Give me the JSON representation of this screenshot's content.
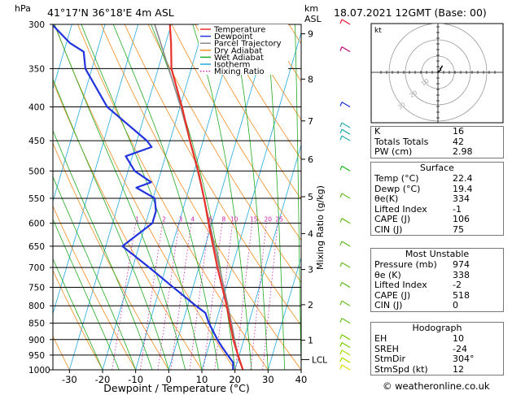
{
  "header": {
    "hpa_label": "hPa",
    "location": "41°17'N  36°18'E  4m  ASL",
    "km_label": "km",
    "asl_label": "ASL",
    "datetime": "18.07.2021  12GMT  (Base: 00)"
  },
  "chart_data": {
    "type": "line",
    "title": "",
    "xlabel": "Dewpoint / Temperature (°C)",
    "ylabel": "hPa",
    "secondary_ylabel": "Mixing Ratio (g/kg)",
    "xlim": [
      -35,
      40
    ],
    "ylim": [
      1000,
      300
    ],
    "y_scale": "log",
    "x_ticks": [
      -30,
      -20,
      -10,
      0,
      10,
      20,
      30,
      40
    ],
    "pressure_ticks": [
      300,
      350,
      400,
      450,
      500,
      550,
      600,
      650,
      700,
      750,
      800,
      850,
      900,
      950,
      1000
    ],
    "km_ticks": [
      {
        "km": "1",
        "p": 902
      },
      {
        "km": "2",
        "p": 797
      },
      {
        "km": "3",
        "p": 705
      },
      {
        "km": "4",
        "p": 622
      },
      {
        "km": "5",
        "p": 547
      },
      {
        "km": "6",
        "p": 480
      },
      {
        "km": "7",
        "p": 420
      },
      {
        "km": "8",
        "p": 363
      },
      {
        "km": "9",
        "p": 310
      }
    ],
    "lcl": {
      "label": "LCL",
      "p": 965
    },
    "mixing_ratio_labels": [
      "1",
      "2",
      "3",
      "4",
      "6",
      "8",
      "10",
      "15",
      "20",
      "25"
    ],
    "mixing_ratio_values": [
      1,
      2,
      3,
      4,
      6,
      8,
      10,
      15,
      20,
      25
    ],
    "legend": {
      "placement": "top-center",
      "entries": [
        {
          "name": "Temperature",
          "color": "#e8312a",
          "dash": "solid"
        },
        {
          "name": "Dewpoint",
          "color": "#2233dd",
          "dash": "solid"
        },
        {
          "name": "Parcel Trajectory",
          "color": "#888888",
          "dash": "solid"
        },
        {
          "name": "Dry Adiabat",
          "color": "#f28c1f",
          "dash": "solid"
        },
        {
          "name": "Wet Adiabat",
          "color": "#22aa22",
          "dash": "solid"
        },
        {
          "name": "Isotherm",
          "color": "#22aadd",
          "dash": "solid"
        },
        {
          "name": "Mixing Ratio",
          "color": "#cc22aa",
          "dash": "dotted"
        }
      ]
    },
    "series": [
      {
        "name": "Temperature",
        "color": "#e8312a",
        "points": [
          [
            1000,
            22.4
          ],
          [
            975,
            21.0
          ],
          [
            950,
            19.6
          ],
          [
            925,
            18.2
          ],
          [
            900,
            16.8
          ],
          [
            850,
            14.4
          ],
          [
            800,
            11.8
          ],
          [
            750,
            8.8
          ],
          [
            700,
            5.6
          ],
          [
            650,
            2.4
          ],
          [
            600,
            -1.0
          ],
          [
            550,
            -4.6
          ],
          [
            500,
            -8.8
          ],
          [
            450,
            -14.0
          ],
          [
            400,
            -19.4
          ],
          [
            350,
            -26.0
          ],
          [
            320,
            -28.4
          ],
          [
            300,
            -30.4
          ]
        ]
      },
      {
        "name": "Dewpoint",
        "color": "#2233dd",
        "points": [
          [
            1000,
            19.4
          ],
          [
            975,
            18.8
          ],
          [
            950,
            16.5
          ],
          [
            925,
            14.2
          ],
          [
            900,
            12.0
          ],
          [
            850,
            8.0
          ],
          [
            820,
            6.0
          ],
          [
            800,
            2.5
          ],
          [
            750,
            -6.0
          ],
          [
            700,
            -15.0
          ],
          [
            650,
            -25.0
          ],
          [
            600,
            -18.0
          ],
          [
            575,
            -18.0
          ],
          [
            550,
            -19.5
          ],
          [
            530,
            -26.0
          ],
          [
            520,
            -22.0
          ],
          [
            500,
            -28.0
          ],
          [
            475,
            -32.0
          ],
          [
            460,
            -25.0
          ],
          [
            450,
            -27.0
          ],
          [
            400,
            -42.0
          ],
          [
            350,
            -52.0
          ],
          [
            330,
            -54.0
          ],
          [
            320,
            -59.0
          ],
          [
            300,
            -66.0
          ]
        ]
      },
      {
        "name": "Parcel Trajectory",
        "color": "#888888",
        "points": [
          [
            1000,
            22.4
          ],
          [
            965,
            20.2
          ],
          [
            900,
            17.2
          ],
          [
            850,
            14.8
          ],
          [
            800,
            12.2
          ],
          [
            750,
            9.3
          ],
          [
            700,
            6.2
          ],
          [
            650,
            2.9
          ],
          [
            600,
            -0.7
          ],
          [
            550,
            -4.6
          ],
          [
            500,
            -9.0
          ],
          [
            450,
            -14.0
          ],
          [
            400,
            -19.8
          ],
          [
            350,
            -26.8
          ],
          [
            300,
            -35.0
          ]
        ]
      }
    ],
    "winds": [
      {
        "p": 1000,
        "color": "#dddd00"
      },
      {
        "p": 975,
        "color": "#aadd00"
      },
      {
        "p": 950,
        "color": "#aadd00"
      },
      {
        "p": 925,
        "color": "#77cc00"
      },
      {
        "p": 900,
        "color": "#77cc00"
      },
      {
        "p": 850,
        "color": "#66bb22"
      },
      {
        "p": 800,
        "color": "#66bb22"
      },
      {
        "p": 750,
        "color": "#66bb22"
      },
      {
        "p": 700,
        "color": "#66bb22"
      },
      {
        "p": 650,
        "color": "#66bb22"
      },
      {
        "p": 600,
        "color": "#66bb22"
      },
      {
        "p": 550,
        "color": "#66bb22"
      },
      {
        "p": 500,
        "color": "#22bb22"
      },
      {
        "p": 450,
        "color": "#22aaaa"
      },
      {
        "p": 440,
        "color": "#22aaaa"
      },
      {
        "p": 430,
        "color": "#22aaaa"
      },
      {
        "p": 400,
        "color": "#2233dd"
      },
      {
        "p": 330,
        "color": "#bb0077"
      },
      {
        "p": 300,
        "color": "#ee1133"
      }
    ],
    "hodograph": {
      "label": "kt",
      "ring_labels": [
        "10",
        "20",
        "30"
      ],
      "points": [
        [
          0,
          0
        ],
        [
          2,
          -3
        ],
        [
          4,
          -5
        ],
        [
          3,
          -8
        ],
        [
          5,
          -10
        ],
        [
          6,
          -14
        ]
      ]
    }
  },
  "indices": {
    "top": [
      {
        "label": "K",
        "value": "16"
      },
      {
        "label": "Totals Totals",
        "value": "42"
      },
      {
        "label": "PW (cm)",
        "value": "2.98"
      }
    ],
    "surface": {
      "title": "Surface",
      "rows": [
        {
          "label": "Temp (°C)",
          "value": "22.4"
        },
        {
          "label": "Dewp (°C)",
          "value": "19.4"
        },
        {
          "label": "θe(K)",
          "value": "334"
        },
        {
          "label": "Lifted Index",
          "value": "-1"
        },
        {
          "label": "CAPE (J)",
          "value": "106"
        },
        {
          "label": "CIN (J)",
          "value": "75"
        }
      ]
    },
    "unstable": {
      "title": "Most Unstable",
      "rows": [
        {
          "label": "Pressure (mb)",
          "value": "974"
        },
        {
          "label": "θe (K)",
          "value": "338"
        },
        {
          "label": "Lifted Index",
          "value": "-2"
        },
        {
          "label": "CAPE (J)",
          "value": "518"
        },
        {
          "label": "CIN (J)",
          "value": "0"
        }
      ]
    },
    "hodograph": {
      "title": "Hodograph",
      "rows": [
        {
          "label": "EH",
          "value": "10"
        },
        {
          "label": "SREH",
          "value": "-24"
        },
        {
          "label": "StmDir",
          "value": "304°"
        },
        {
          "label": "StmSpd (kt)",
          "value": "12"
        }
      ]
    }
  },
  "footer": {
    "copyright": "© weatheronline.co.uk"
  }
}
